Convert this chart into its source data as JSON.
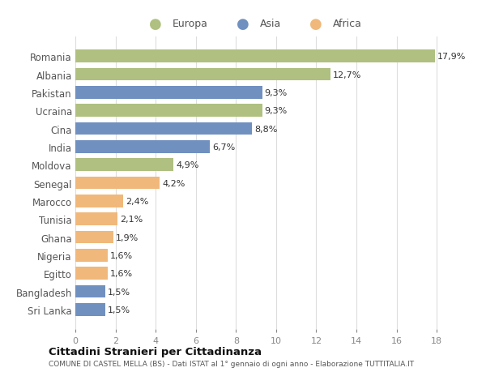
{
  "categories": [
    "Romania",
    "Albania",
    "Pakistan",
    "Ucraina",
    "Cina",
    "India",
    "Moldova",
    "Senegal",
    "Marocco",
    "Tunisia",
    "Ghana",
    "Nigeria",
    "Egitto",
    "Bangladesh",
    "Sri Lanka"
  ],
  "values": [
    17.9,
    12.7,
    9.3,
    9.3,
    8.8,
    6.7,
    4.9,
    4.2,
    2.4,
    2.1,
    1.9,
    1.6,
    1.6,
    1.5,
    1.5
  ],
  "labels": [
    "17,9%",
    "12,7%",
    "9,3%",
    "9,3%",
    "8,8%",
    "6,7%",
    "4,9%",
    "4,2%",
    "2,4%",
    "2,1%",
    "1,9%",
    "1,6%",
    "1,6%",
    "1,5%",
    "1,5%"
  ],
  "colors": [
    "#afc080",
    "#afc080",
    "#7090c0",
    "#afc080",
    "#7090c0",
    "#7090c0",
    "#afc080",
    "#f0b87a",
    "#f0b87a",
    "#f0b87a",
    "#f0b87a",
    "#f0b87a",
    "#f0b87a",
    "#7090c0",
    "#7090c0"
  ],
  "legend_labels": [
    "Europa",
    "Asia",
    "Africa"
  ],
  "legend_colors": [
    "#afc080",
    "#7090c0",
    "#f0b87a"
  ],
  "xlim": [
    0,
    19
  ],
  "xticks": [
    0,
    2,
    4,
    6,
    8,
    10,
    12,
    14,
    16,
    18
  ],
  "title": "Cittadini Stranieri per Cittadinanza",
  "subtitle": "COMUNE DI CASTEL MELLA (BS) - Dati ISTAT al 1° gennaio di ogni anno - Elaborazione TUTTITALIA.IT",
  "bg_color": "#ffffff",
  "grid_color": "#dddddd",
  "bar_height": 0.7,
  "label_fontsize": 8.0,
  "ytick_fontsize": 8.5
}
